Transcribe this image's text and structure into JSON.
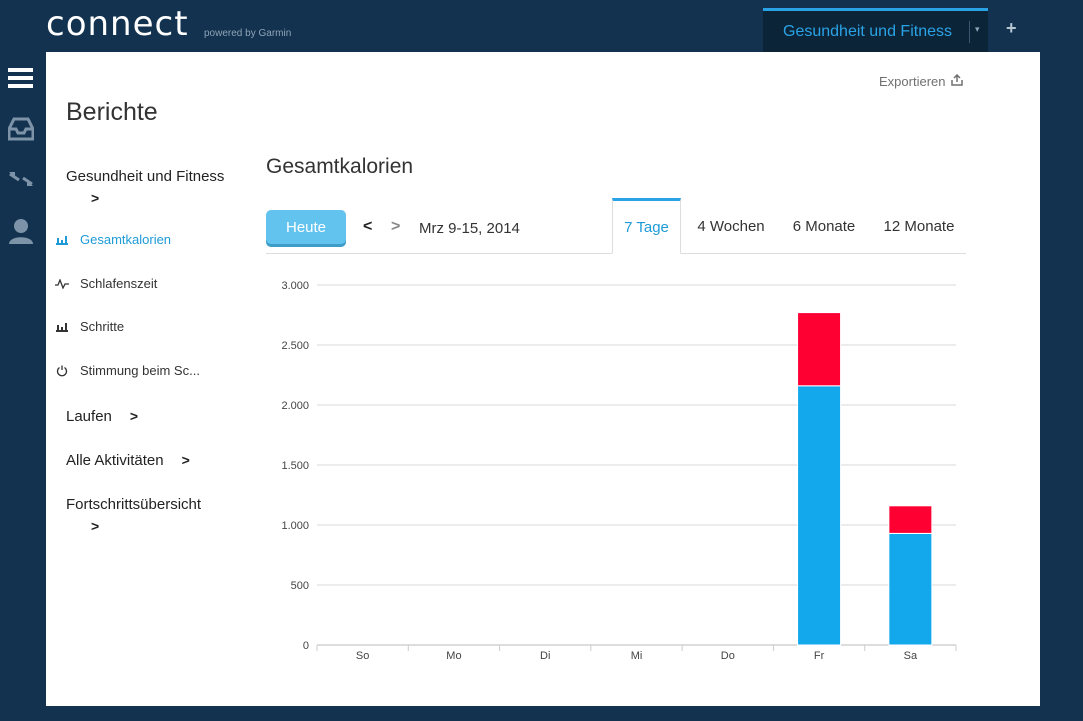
{
  "header": {
    "logo": "connect",
    "logo_sub": "powered by Garmin",
    "app_tab": "Gesundheit und Fitness",
    "add_symbol": "+"
  },
  "rail": {
    "icons": [
      "menu-icon",
      "inbox-icon",
      "connections-icon",
      "user-icon"
    ]
  },
  "panel": {
    "export_label": "Exportieren",
    "page_title": "Berichte",
    "nav": {
      "group_health": "Gesundheit und Fitness",
      "items": [
        {
          "label": "Gesamtkalorien",
          "icon": "bar-chart-icon",
          "active": true
        },
        {
          "label": "Schlafenszeit",
          "icon": "pulse-icon",
          "active": false
        },
        {
          "label": "Schritte",
          "icon": "bar-chart-icon",
          "active": false
        },
        {
          "label": "Stimmung beim Sc...",
          "icon": "power-icon",
          "active": false
        }
      ],
      "group_running": "Laufen",
      "group_all": "Alle Aktivitäten",
      "group_progress": "Fortschrittsübersicht"
    },
    "section_title": "Gesamtkalorien",
    "today_button": "Heute",
    "date_range": "Mrz 9-15, 2014",
    "range_tabs": [
      "7 Tage",
      "4 Wochen",
      "6 Monate",
      "12 Monate"
    ],
    "active_range": "7 Tage"
  },
  "colors": {
    "accent": "#2aa3e6",
    "series_base": "#13a8ec",
    "series_top": "#ff0033",
    "background": "#12324f"
  },
  "chart_data": {
    "type": "bar",
    "stacked": true,
    "categories": [
      "So",
      "Mo",
      "Di",
      "Mi",
      "Do",
      "Fr",
      "Sa"
    ],
    "series": [
      {
        "values": [
          0,
          0,
          0,
          0,
          0,
          2160,
          930
        ],
        "color": "#13a8ec"
      },
      {
        "values": [
          0,
          0,
          0,
          0,
          0,
          610,
          230
        ],
        "color": "#ff0033"
      }
    ],
    "ylim": [
      0,
      3000
    ],
    "yticks": [
      0,
      500,
      1000,
      1500,
      2000,
      2500,
      3000
    ],
    "ytick_labels": [
      "0",
      "500",
      "1.000",
      "1.500",
      "2.000",
      "2.500",
      "3.000"
    ],
    "grid": true,
    "legend": "none"
  }
}
